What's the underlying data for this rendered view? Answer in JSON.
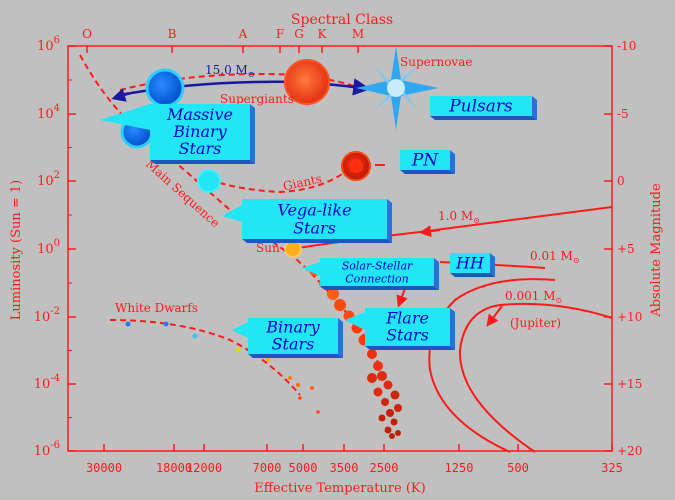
{
  "colors": {
    "background": "#c0c0c0",
    "axis": "#ff1a1a",
    "box_fill": "#22e6f5",
    "box_text": "#0000cc",
    "track_blue": "#1a1aa0"
  },
  "axes": {
    "top_title": "Spectral Class",
    "spectral_classes": [
      "O",
      "B",
      "A",
      "F",
      "G",
      "K",
      "M"
    ],
    "bottom_title": "Effective Temperature (K)",
    "temperature_ticks": [
      "30000",
      "18000",
      "12000",
      "7000",
      "5000",
      "3500",
      "2500",
      "1250",
      "500",
      "325"
    ],
    "left_title": "Luminosity (Sun = 1)",
    "luminosity_ticks": [
      {
        "base": "10",
        "exp": "6"
      },
      {
        "base": "10",
        "exp": "4"
      },
      {
        "base": "10",
        "exp": "2"
      },
      {
        "base": "10",
        "exp": "0"
      },
      {
        "base": "10",
        "exp": "-2"
      },
      {
        "base": "10",
        "exp": "-4"
      },
      {
        "base": "10",
        "exp": "-6"
      }
    ],
    "right_title": "Absolute Magnitude",
    "magnitude_ticks": [
      "-10",
      "-5",
      "0",
      "+5",
      "+10",
      "+15",
      "+20"
    ]
  },
  "labels": {
    "supernovae": "Supernovae",
    "supergiants": "Supergiants",
    "giants": "Giants",
    "main_sequence": "Main Sequence",
    "white_dwarfs": "White Dwarfs",
    "sun": "Sun",
    "jupiter": "(Jupiter)"
  },
  "tracks": [
    {
      "mass": "15.0",
      "unit": "M",
      "sub": "⊙"
    },
    {
      "mass": "1.0",
      "unit": "M",
      "sub": "⊙"
    },
    {
      "mass": "0.01",
      "unit": "M",
      "sub": "⊙"
    },
    {
      "mass": "0.001",
      "unit": "M",
      "sub": "⊙"
    }
  ],
  "boxes": {
    "massive_binary": [
      "Massive",
      "Binary",
      "Stars"
    ],
    "pulsars": [
      "Pulsars"
    ],
    "pn": [
      "PN"
    ],
    "vega": [
      "Vega-like",
      "Stars"
    ],
    "solar_stellar": [
      "Solar-Stellar",
      "Connection"
    ],
    "hh": [
      "HH"
    ],
    "flare": [
      "Flare",
      "Stars"
    ],
    "binary": [
      "Binary",
      "Stars"
    ]
  }
}
